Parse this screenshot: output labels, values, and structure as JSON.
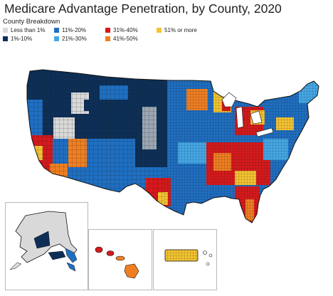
{
  "title": "Medicare Advantage Penetration, by County, 2020",
  "legend": {
    "title": "County Breakdown",
    "items": [
      {
        "label": "Less than 1%",
        "color": "#d9d9d9"
      },
      {
        "label": "1%-10%",
        "color": "#0d2f57"
      },
      {
        "label": "11%-20%",
        "color": "#1f6fc2"
      },
      {
        "label": "21%-30%",
        "color": "#45a8e6"
      },
      {
        "label": "31%-40%",
        "color": "#d7191c"
      },
      {
        "label": "41%-50%",
        "color": "#f07f22"
      },
      {
        "label": "51% or more",
        "color": "#f4c430"
      }
    ]
  },
  "map": {
    "regions": [
      "Contiguous US",
      "Alaska",
      "Hawaii",
      "Puerto Rico"
    ],
    "border_color": "#1a1a1a"
  }
}
